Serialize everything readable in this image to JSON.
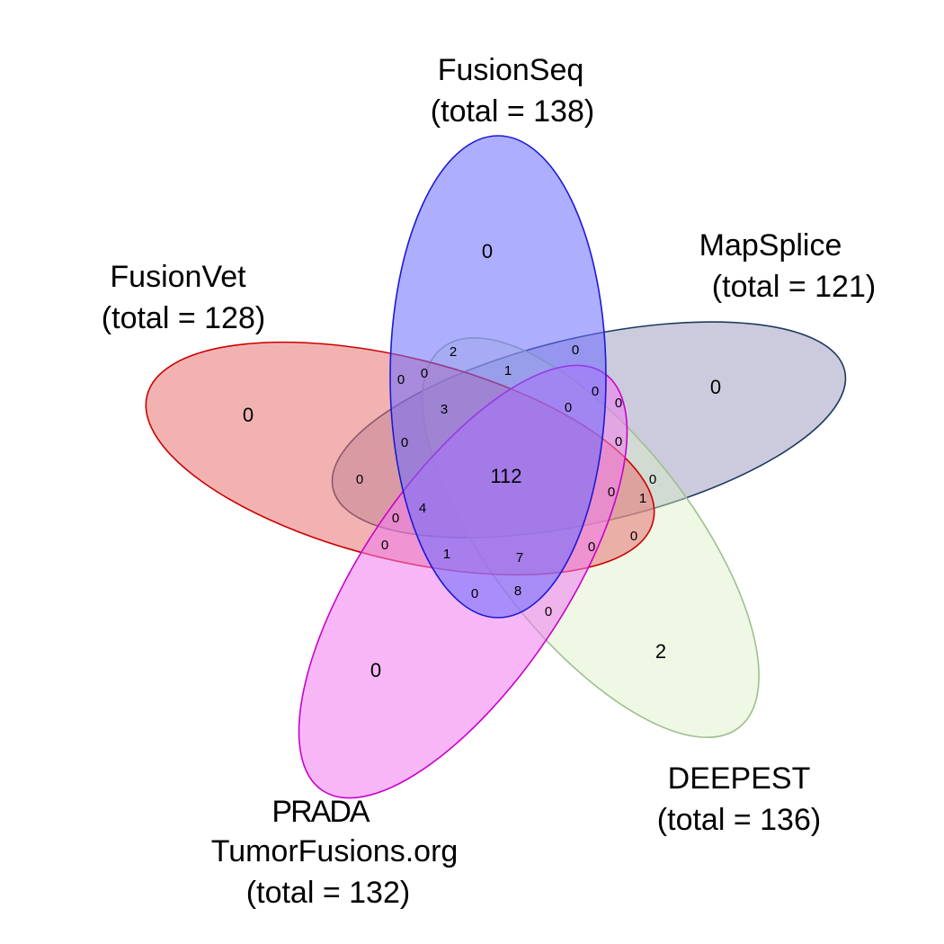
{
  "sets": [
    {
      "name": "FusionSeq",
      "total": "(total = 138)",
      "fill": "#6b6bff",
      "stroke": "#1a1ad6"
    },
    {
      "name": "MapSplice",
      "total": "(total = 121)",
      "fill": "#8c8cb4",
      "stroke": "#1f3a5f"
    },
    {
      "name": "FusionVet",
      "total": "(total = 128)",
      "fill": "#e87373",
      "stroke": "#cc0000"
    },
    {
      "name": "DEEPEST",
      "total": "(total = 136)",
      "fill": "#d9efc4",
      "stroke": "#9fbf8f"
    },
    {
      "name": "PRADA",
      "name2": "TumorFusions.org",
      "total": "(total = 132)",
      "fill": "#f07cf0",
      "stroke": "#cc00cc"
    }
  ],
  "regions": [
    {
      "label": "0",
      "size": "big"
    },
    {
      "label": "0",
      "size": "big"
    },
    {
      "label": "0",
      "size": "big"
    },
    {
      "label": "0",
      "size": "big"
    },
    {
      "label": "2",
      "size": "big"
    },
    {
      "label": "112",
      "size": "center"
    },
    {
      "label": "2",
      "size": "small"
    },
    {
      "label": "0",
      "size": "small"
    },
    {
      "label": "1",
      "size": "small"
    },
    {
      "label": "0",
      "size": "small"
    },
    {
      "label": "0",
      "size": "small"
    },
    {
      "label": "0",
      "size": "small"
    },
    {
      "label": "0",
      "size": "small"
    },
    {
      "label": "0",
      "size": "small"
    },
    {
      "label": "3",
      "size": "small"
    },
    {
      "label": "0",
      "size": "small"
    },
    {
      "label": "0",
      "size": "small"
    },
    {
      "label": "0",
      "size": "small"
    },
    {
      "label": "0",
      "size": "small"
    },
    {
      "label": "0",
      "size": "small"
    },
    {
      "label": "1",
      "size": "small"
    },
    {
      "label": "4",
      "size": "small"
    },
    {
      "label": "0",
      "size": "small"
    },
    {
      "label": "0",
      "size": "small"
    },
    {
      "label": "0",
      "size": "small"
    },
    {
      "label": "1",
      "size": "small"
    },
    {
      "label": "7",
      "size": "small"
    },
    {
      "label": "0",
      "size": "small"
    },
    {
      "label": "0",
      "size": "small"
    },
    {
      "label": "0",
      "size": "small"
    },
    {
      "label": "8",
      "size": "small"
    },
    {
      "label": "0",
      "size": "small"
    }
  ]
}
